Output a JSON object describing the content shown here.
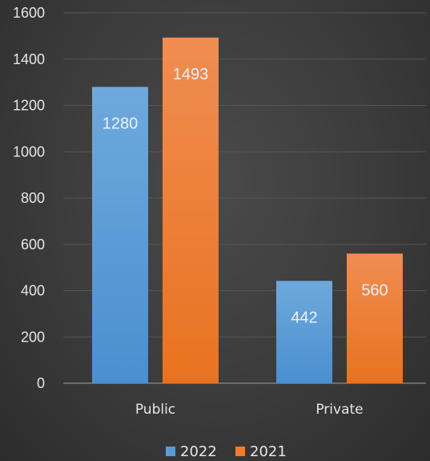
{
  "chart_data": {
    "type": "bar",
    "categories": [
      "Public",
      "Private"
    ],
    "series": [
      {
        "name": "2022",
        "values": [
          1280,
          442
        ],
        "color": "#5b9bd5"
      },
      {
        "name": "2021",
        "values": [
          1493,
          560
        ],
        "color": "#ed7d31"
      }
    ],
    "ylim": [
      0,
      1600
    ],
    "yticks": [
      "0",
      "200",
      "400",
      "600",
      "800",
      "1000",
      "1200",
      "1400",
      "1600"
    ],
    "data_labels": [
      [
        "1280",
        "442"
      ],
      [
        "1493",
        "560"
      ]
    ],
    "grid": true,
    "legend_position": "bottom",
    "title": "",
    "xlabel": "",
    "ylabel": ""
  }
}
